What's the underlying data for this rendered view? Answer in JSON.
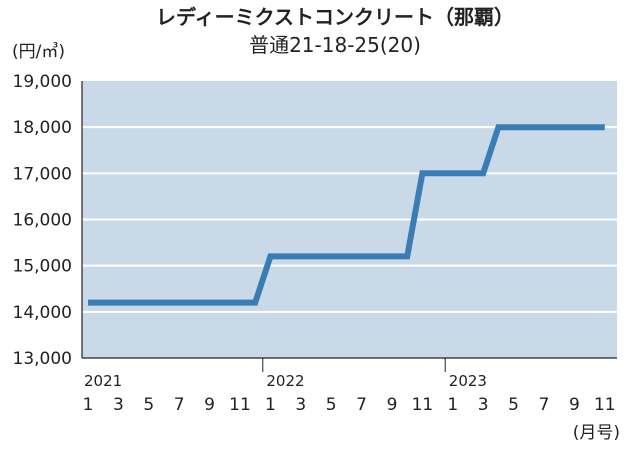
{
  "chart_data": {
    "type": "line",
    "title": "レディーミクストコンクリート（那覇）",
    "subtitle": "普通21-18-25(20)",
    "ylabel": "(円/㎥)",
    "xlabel": "(月号)",
    "ylim": [
      13000,
      19000
    ],
    "y_ticks": [
      "19,000",
      "18,000",
      "17,000",
      "16,000",
      "15,000",
      "14,000",
      "13,000"
    ],
    "y_tick_values": [
      19000,
      18000,
      17000,
      16000,
      15000,
      14000,
      13000
    ],
    "x_tick_labels": [
      "1",
      "3",
      "5",
      "7",
      "9",
      "11",
      "1",
      "3",
      "5",
      "7",
      "9",
      "11",
      "1",
      "3",
      "5",
      "7",
      "9",
      "11"
    ],
    "x_year_labels": [
      {
        "year": "2021",
        "index": 0
      },
      {
        "year": "2022",
        "index": 12
      },
      {
        "year": "2023",
        "index": 24
      }
    ],
    "x_count": 35,
    "series": [
      {
        "values": [
          14200,
          14200,
          14200,
          14200,
          14200,
          14200,
          14200,
          14200,
          14200,
          14200,
          14200,
          14200,
          15200,
          15200,
          15200,
          15200,
          15200,
          15200,
          15200,
          15200,
          15200,
          15200,
          17000,
          17000,
          17000,
          17000,
          17000,
          18000,
          18000,
          18000,
          18000,
          18000,
          18000,
          18000,
          18000
        ]
      }
    ],
    "grid": true,
    "colors": {
      "plot_bg": "#c9d9e8",
      "line": "#3a7db5",
      "grid": "#ffffff",
      "axis": "#222222"
    }
  }
}
